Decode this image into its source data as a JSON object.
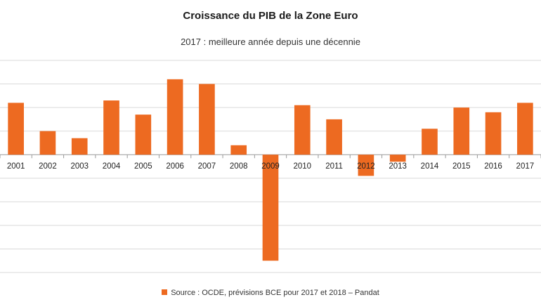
{
  "chart_data": {
    "type": "bar",
    "title": "Croissance du PIB de la Zone Euro",
    "subtitle": "2017 : meilleure année depuis une décennie",
    "categories": [
      "2001",
      "2002",
      "2003",
      "2004",
      "2005",
      "2006",
      "2007",
      "2008",
      "2009",
      "2010",
      "2011",
      "2012",
      "2013",
      "2014",
      "2015",
      "2016",
      "2017"
    ],
    "series": [
      {
        "name": "Source : OCDE, prévisions BCE pour 2017 et 2018 – Pandat",
        "values": [
          2.2,
          1.0,
          0.7,
          2.3,
          1.7,
          3.2,
          3.0,
          0.4,
          -4.5,
          2.1,
          1.5,
          -0.9,
          -0.3,
          1.1,
          2.0,
          1.8,
          2.2
        ]
      }
    ],
    "ylim": [
      -5,
      4
    ],
    "grid": true,
    "legend_position": "bottom",
    "colors": {
      "bar": "#ED6A21",
      "grid": "#d9d9d9",
      "axis": "#9a9a9a"
    }
  }
}
